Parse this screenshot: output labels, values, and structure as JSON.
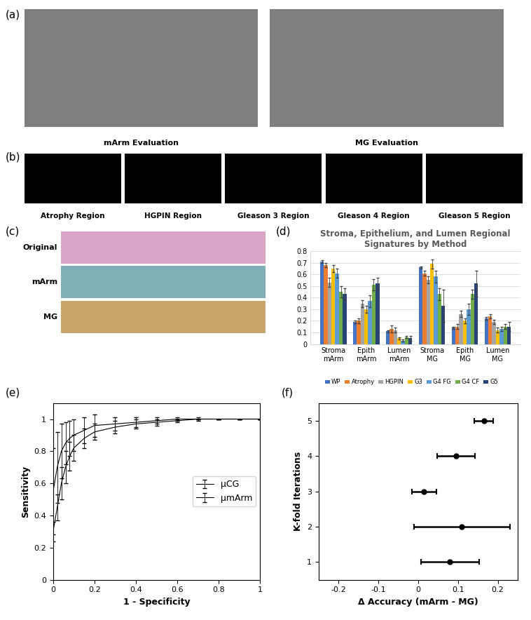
{
  "panel_labels": [
    "(a)",
    "(b)",
    "(c)",
    "(d)",
    "(e)",
    "(f)"
  ],
  "images": {
    "a": {
      "captions": [
        "mArm Evaluation",
        "MG Evaluation"
      ]
    },
    "b": {
      "captions": [
        "Atrophy Region",
        "HGPIN Region",
        "Gleason 3 Region",
        "Gleason 4 Region",
        "Gleason 5 Region"
      ]
    },
    "c": {
      "row_labels": [
        "Original",
        "mArm",
        "MG"
      ]
    }
  },
  "chart_data": [
    {
      "type": "bar",
      "title": "Stroma, Epithelium, and Lumen Regional Signatures by Method",
      "categories": [
        "Stroma\nmArm",
        "Epith\nmArm",
        "Lumen\nmArm",
        "Stroma\nMG",
        "Epith\nMG",
        "Lumen\nMG"
      ],
      "series": [
        {
          "name": "WP",
          "color": "#4472c4",
          "values": [
            0.71,
            0.19,
            0.11,
            0.66,
            0.14,
            0.22
          ],
          "errors": [
            0.01,
            0.01,
            0.01,
            0.01,
            0.01,
            0.01
          ]
        },
        {
          "name": "Atrophy",
          "color": "#ed7d31",
          "values": [
            0.68,
            0.2,
            0.13,
            0.61,
            0.15,
            0.24
          ],
          "errors": [
            0.02,
            0.02,
            0.03,
            0.02,
            0.02,
            0.02
          ]
        },
        {
          "name": "HGPIN",
          "color": "#a5a5a5",
          "values": [
            0.53,
            0.35,
            0.12,
            0.55,
            0.26,
            0.19
          ],
          "errors": [
            0.04,
            0.03,
            0.02,
            0.03,
            0.03,
            0.02
          ]
        },
        {
          "name": "G3",
          "color": "#ffc000",
          "values": [
            0.65,
            0.3,
            0.05,
            0.69,
            0.2,
            0.12
          ],
          "errors": [
            0.03,
            0.03,
            0.01,
            0.04,
            0.02,
            0.02
          ]
        },
        {
          "name": "G4 FG",
          "color": "#5b9bd5",
          "values": [
            0.61,
            0.37,
            0.03,
            0.58,
            0.3,
            0.13
          ],
          "errors": [
            0.04,
            0.05,
            0.01,
            0.05,
            0.05,
            0.02
          ]
        },
        {
          "name": "G4 CF",
          "color": "#70ad47",
          "values": [
            0.45,
            0.51,
            0.06,
            0.43,
            0.43,
            0.15
          ],
          "errors": [
            0.05,
            0.05,
            0.01,
            0.05,
            0.04,
            0.02
          ]
        },
        {
          "name": "G5",
          "color": "#264478",
          "values": [
            0.43,
            0.52,
            0.05,
            0.33,
            0.52,
            0.15
          ],
          "errors": [
            0.05,
            0.05,
            0.02,
            0.14,
            0.11,
            0.04
          ]
        }
      ],
      "ylim": [
        0,
        0.8
      ],
      "yticks": [
        0,
        0.1,
        0.2,
        0.3,
        0.4,
        0.5,
        0.6,
        0.7,
        0.8
      ],
      "grid": true,
      "legend": "lower center"
    },
    {
      "type": "line",
      "x_label": "1 - Specificity",
      "y_label": "Sensitivity",
      "x": [
        0,
        0.02,
        0.04,
        0.06,
        0.08,
        0.1,
        0.15,
        0.2,
        0.3,
        0.4,
        0.5,
        0.6,
        0.7,
        0.8,
        0.9,
        1
      ],
      "series": [
        {
          "name": "μCG",
          "color": "#000000",
          "line_style": "solid",
          "values": [
            0.3,
            0.45,
            0.6,
            0.7,
            0.77,
            0.82,
            0.88,
            0.92,
            0.95,
            0.97,
            0.98,
            0.99,
            1,
            1,
            1,
            1
          ],
          "errors": [
            0.06,
            0.08,
            0.1,
            0.1,
            0.09,
            0.08,
            0.06,
            0.05,
            0.04,
            0.03,
            0.02,
            0.01,
            0.01,
            0,
            0,
            0
          ]
        },
        {
          "name": "μmArm",
          "color": "#000000",
          "line_style": "solid",
          "values": [
            0.55,
            0.7,
            0.8,
            0.85,
            0.88,
            0.9,
            0.93,
            0.96,
            0.97,
            0.98,
            0.99,
            1,
            1,
            1,
            1,
            1
          ],
          "errors": [
            0.27,
            0.22,
            0.17,
            0.13,
            0.11,
            0.1,
            0.08,
            0.07,
            0.04,
            0.03,
            0.02,
            0.01,
            0,
            0,
            0,
            0
          ]
        }
      ],
      "xlim": [
        0,
        1
      ],
      "xticks": [
        0,
        0.2,
        0.4,
        0.6,
        0.8,
        1
      ],
      "ylim": [
        0,
        1.1
      ],
      "yticks": [
        0,
        0.2,
        0.4,
        0.6,
        0.8,
        1
      ],
      "legend": "center right"
    },
    {
      "type": "errorbar",
      "x_label": "Δ Accuracy (mArm - MG)",
      "y_label": "K-fold Iterations",
      "y": [
        1,
        2,
        3,
        4,
        5
      ],
      "x": [
        0.08,
        0.11,
        0.015,
        0.095,
        0.165
      ],
      "xerr": [
        0.073,
        0.12,
        0.03,
        0.048,
        0.024
      ],
      "color": "#000000",
      "marker": "o",
      "xlim": [
        -0.25,
        0.25
      ],
      "xticks": [
        -0.2,
        -0.1,
        0,
        0.1,
        0.2
      ],
      "ylim": [
        0.5,
        5.5
      ],
      "yticks": [
        1,
        2,
        3,
        4,
        5
      ]
    }
  ]
}
